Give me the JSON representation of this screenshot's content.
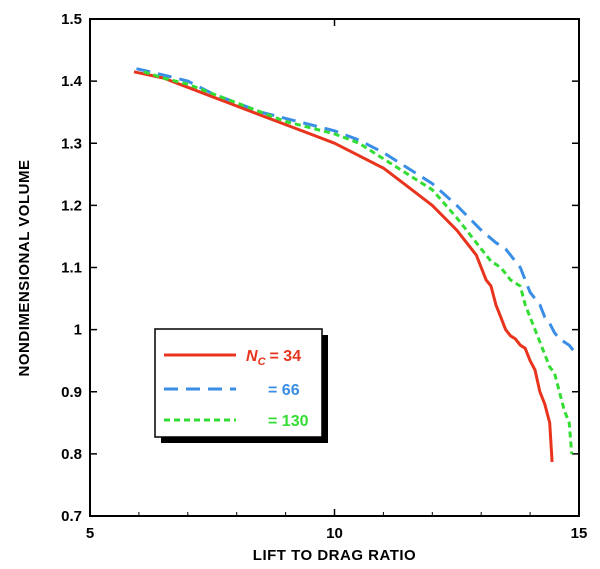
{
  "chart_data": {
    "type": "line",
    "title": "",
    "xlabel": "LIFT TO DRAG RATIO",
    "ylabel": "NONDIMENSIONAL  VOLUME",
    "xlim": [
      5,
      15
    ],
    "ylim": [
      0.7,
      1.5
    ],
    "x_ticks": [
      "5",
      "10",
      "15"
    ],
    "y_ticks": [
      "0.7",
      "0.8",
      "0.9",
      "1",
      "1.1",
      "1.2",
      "1.3",
      "1.4",
      "1.5"
    ],
    "grid": false,
    "legend_position": "lower-left",
    "legend_prefix": "N",
    "legend_prefix_sub": "C",
    "series": [
      {
        "name": "= 34",
        "color": "#e8341c",
        "dash": "solid",
        "x": [
          5.9,
          6.5,
          7.0,
          7.5,
          8.0,
          8.5,
          9.0,
          9.5,
          10.0,
          10.5,
          11.0,
          11.5,
          12.0,
          12.5,
          12.9,
          13.1,
          13.2,
          13.3,
          13.4,
          13.5,
          13.6,
          13.7,
          13.8,
          13.9,
          14.0,
          14.1,
          14.2,
          14.3,
          14.4,
          14.45
        ],
        "y": [
          1.415,
          1.405,
          1.39,
          1.375,
          1.36,
          1.345,
          1.33,
          1.315,
          1.3,
          1.28,
          1.26,
          1.23,
          1.2,
          1.16,
          1.12,
          1.08,
          1.07,
          1.04,
          1.02,
          1.0,
          0.99,
          0.985,
          0.975,
          0.97,
          0.95,
          0.935,
          0.9,
          0.88,
          0.85,
          0.787
        ]
      },
      {
        "name": "66",
        "color": "#3a8ee6",
        "dash": "dashed",
        "x": [
          5.95,
          6.5,
          7.0,
          7.5,
          8.0,
          8.5,
          9.0,
          9.5,
          10.0,
          10.5,
          11.0,
          11.5,
          12.0,
          12.5,
          13.0,
          13.3,
          13.5,
          13.7,
          13.8,
          13.9,
          14.0,
          14.1,
          14.2,
          14.3,
          14.4,
          14.5,
          14.6,
          14.7,
          14.8,
          14.9
        ],
        "y": [
          1.42,
          1.41,
          1.4,
          1.38,
          1.365,
          1.35,
          1.34,
          1.33,
          1.32,
          1.305,
          1.285,
          1.26,
          1.235,
          1.2,
          1.16,
          1.14,
          1.13,
          1.11,
          1.1,
          1.08,
          1.06,
          1.05,
          1.04,
          1.02,
          1.01,
          0.995,
          0.985,
          0.98,
          0.975,
          0.965
        ]
      },
      {
        "name": "= 130",
        "color": "#33dd33",
        "dash": "dotted",
        "x": [
          6.1,
          6.5,
          7.0,
          7.5,
          8.0,
          8.5,
          9.0,
          9.5,
          10.0,
          10.5,
          11.0,
          11.5,
          12.0,
          12.5,
          13.0,
          13.2,
          13.4,
          13.6,
          13.8,
          13.9,
          14.0,
          14.1,
          14.2,
          14.3,
          14.4,
          14.5,
          14.6,
          14.7,
          14.8,
          14.85
        ],
        "y": [
          1.415,
          1.405,
          1.395,
          1.38,
          1.365,
          1.35,
          1.335,
          1.325,
          1.315,
          1.3,
          1.275,
          1.25,
          1.225,
          1.18,
          1.13,
          1.11,
          1.1,
          1.08,
          1.07,
          1.04,
          1.02,
          1.0,
          0.98,
          0.96,
          0.94,
          0.93,
          0.9,
          0.87,
          0.85,
          0.8
        ]
      }
    ]
  }
}
